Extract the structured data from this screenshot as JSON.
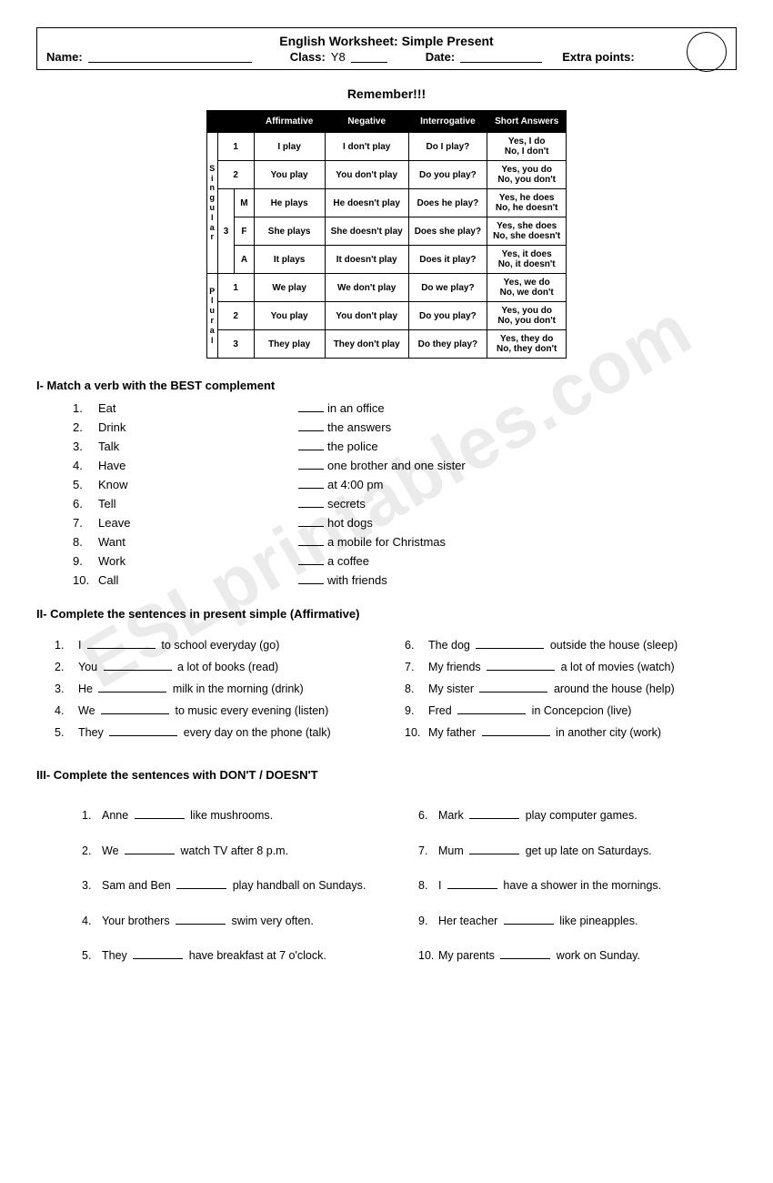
{
  "header": {
    "title": "English Worksheet: Simple Present",
    "name_label": "Name:",
    "class_label": "Class:",
    "class_value": "Y8",
    "date_label": "Date:",
    "extra_label": "Extra points:"
  },
  "watermark": "ESLprintables.com",
  "remember": "Remember!!!",
  "grammar": {
    "headers": [
      "Affirmative",
      "Negative",
      "Interrogative",
      "Short Answers"
    ],
    "singular_label": "S i n g u l a r",
    "plural_label": "P l u r a l",
    "rows": [
      {
        "num": "1",
        "sub": "",
        "aff": "I play",
        "neg": "I don't play",
        "int": "Do I play?",
        "ans": "Yes, I do\nNo, I don't"
      },
      {
        "num": "2",
        "sub": "",
        "aff": "You play",
        "neg": "You don't play",
        "int": "Do you play?",
        "ans": "Yes, you do\nNo, you don't"
      },
      {
        "num": "3",
        "sub": "M",
        "aff": "He plays",
        "neg": "He doesn't play",
        "int": "Does he play?",
        "ans": "Yes, he does\nNo, he doesn't"
      },
      {
        "num": "",
        "sub": "F",
        "aff": "She plays",
        "neg": "She doesn't play",
        "int": "Does she play?",
        "ans": "Yes, she does\nNo, she doesn't"
      },
      {
        "num": "",
        "sub": "A",
        "aff": "It plays",
        "neg": "It doesn't play",
        "int": "Does it play?",
        "ans": "Yes, it does\nNo, it doesn't"
      },
      {
        "num": "1",
        "sub": "",
        "aff": "We play",
        "neg": "We don't play",
        "int": "Do we play?",
        "ans": "Yes, we do\nNo, we don't"
      },
      {
        "num": "2",
        "sub": "",
        "aff": "You play",
        "neg": "You don't play",
        "int": "Do you play?",
        "ans": "Yes, you do\nNo, you don't"
      },
      {
        "num": "3",
        "sub": "",
        "aff": "They play",
        "neg": "They don't play",
        "int": "Do they play?",
        "ans": "Yes, they do\nNo, they don't"
      }
    ]
  },
  "section1": {
    "title": "I- Match a verb with the BEST complement",
    "verbs": [
      "Eat",
      "Drink",
      "Talk",
      "Have",
      "Know",
      "Tell",
      "Leave",
      "Want",
      "Work",
      "Call"
    ],
    "complements": [
      "in an office",
      "the answers",
      "the police",
      "one brother and one sister",
      "at 4:00 pm",
      "secrets",
      "hot dogs",
      "a mobile for Christmas",
      "a coffee",
      "with friends"
    ]
  },
  "section2": {
    "title": "II- Complete the sentences in present simple (Affirmative)",
    "left": [
      "I __________ to school everyday (go)",
      "You __________ a lot of books (read)",
      "He __________ milk in the morning (drink)",
      "We __________ to music every evening (listen)",
      "They __________ every day on the phone (talk)"
    ],
    "right": [
      "The dog __________ outside the house (sleep)",
      "My friends __________ a lot of movies (watch)",
      "My sister __________ around the house (help)",
      "Fred __________ in Concepcion (live)",
      "My father __________ in another city (work)"
    ]
  },
  "section3": {
    "title": "III- Complete the sentences with DON'T / DOESN'T",
    "left": [
      "Anne _______ like mushrooms.",
      "We _______ watch TV after 8 p.m.",
      "Sam and Ben _______ play handball on Sundays.",
      "Your brothers _______ swim very often.",
      "They _______ have breakfast at 7 o'clock."
    ],
    "right": [
      "Mark _______ play computer games.",
      "Mum _______ get up late on Saturdays.",
      "I _______ have a shower in the mornings.",
      "Her teacher _______ like pineapples.",
      "My parents _______ work on Sunday."
    ]
  }
}
